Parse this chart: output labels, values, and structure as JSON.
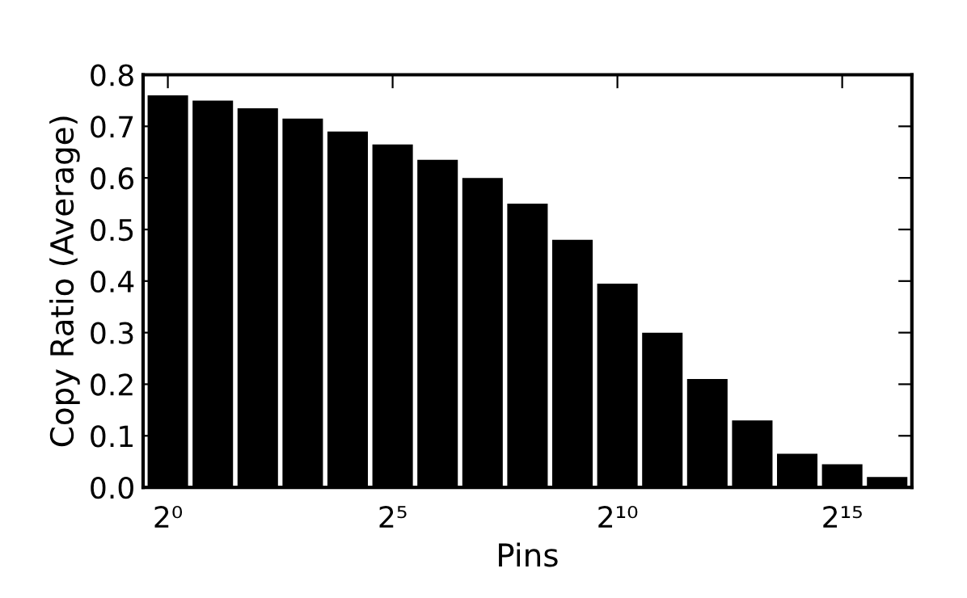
{
  "chart_data": {
    "type": "bar",
    "xlabel": "Pins",
    "ylabel": "Copy Ratio (Average)",
    "categories": [
      "2⁰",
      null,
      null,
      null,
      null,
      "2⁵",
      null,
      null,
      null,
      null,
      "2¹⁰",
      null,
      null,
      null,
      null,
      "2¹⁵",
      null
    ],
    "values": [
      0.76,
      0.75,
      0.735,
      0.715,
      0.69,
      0.665,
      0.635,
      0.6,
      0.55,
      0.48,
      0.395,
      0.3,
      0.21,
      0.13,
      0.065,
      0.045,
      0.02
    ],
    "color": "#000000",
    "ylim": [
      0,
      0.8
    ],
    "yticks": [
      {
        "value": 0,
        "label": "0.0"
      },
      0.1,
      0.2,
      0.3,
      0.4,
      0.5,
      0.6,
      0.7,
      0.8
    ],
    "grid": false
  }
}
